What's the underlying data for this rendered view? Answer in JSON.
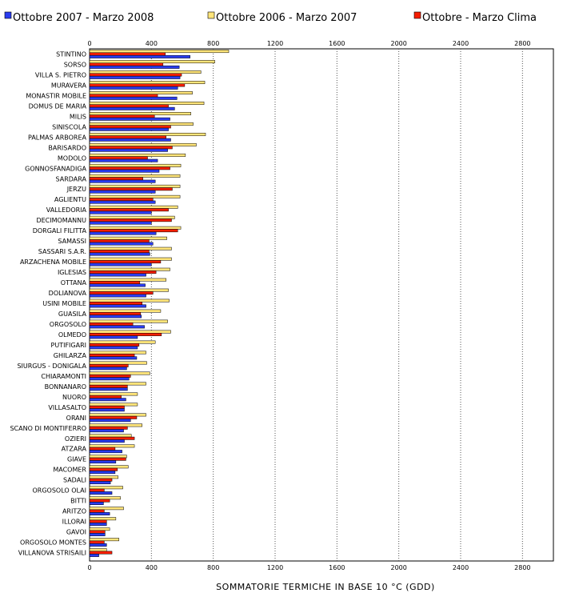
{
  "chart_data": {
    "type": "bar",
    "orientation": "horizontal",
    "xlabel": "SOMMATORIE TERMICHE IN BASE 10 °C (GDD)",
    "xlim": [
      0,
      3000
    ],
    "xticks": [
      0,
      400,
      800,
      1200,
      1600,
      2000,
      2400,
      2800
    ],
    "grid": "vertical dotted",
    "legend_position": "top",
    "categories": [
      "STINTINO",
      "SORSO",
      "VILLA S. PIETRO",
      "MURAVERA",
      "MONASTIR MOBILE",
      "DOMUS DE MARIA",
      "MILIS",
      "SINISCOLA",
      "PALMAS ARBOREA",
      "BARISARDO",
      "MODOLO",
      "GONNOSFANADIGA",
      "SARDARA",
      "JERZU",
      "AGLIENTU",
      "VALLEDORIA",
      "DECIMOMANNU",
      "DORGALI FILITTA",
      "SAMASSI",
      "SASSARI S.A.R.",
      "ARZACHENA MOBILE",
      "IGLESIAS",
      "OTTANA",
      "DOLIANOVA",
      "USINI MOBILE",
      "GUASILA",
      "ORGOSOLO",
      "OLMEDO",
      "PUTIFIGARI",
      "GHILARZA",
      "SIURGUS - DONIGALA",
      "CHIARAMONTI",
      "BONNANARO",
      "NUORO",
      "VILLASALTO",
      "ORANI",
      "SCANO DI MONTIFERRO",
      "OZIERI",
      "ATZARA",
      "GIAVE",
      "MACOMER",
      "SADALI",
      "ORGOSOLO OLAI",
      "BITTI",
      "ARITZO",
      "ILLORAI",
      "GAVOI",
      "ORGOSOLO MONTES",
      "VILLANOVA STRISAILI"
    ],
    "series": [
      {
        "name": "Ottobre 2007 - Marzo 2008",
        "color": "#2a3cf0",
        "values": [
          650,
          580,
          585,
          570,
          565,
          550,
          520,
          510,
          525,
          505,
          440,
          450,
          425,
          425,
          425,
          400,
          400,
          430,
          410,
          390,
          400,
          365,
          360,
          365,
          365,
          335,
          355,
          310,
          310,
          305,
          240,
          255,
          245,
          235,
          225,
          265,
          220,
          225,
          210,
          170,
          165,
          135,
          145,
          90,
          130,
          110,
          100,
          110,
          60
        ]
      },
      {
        "name": "Ottobre 2006 - Marzo 2007",
        "color": "#ffe57a",
        "values": [
          900,
          810,
          720,
          745,
          665,
          740,
          655,
          670,
          750,
          690,
          620,
          590,
          585,
          585,
          585,
          570,
          550,
          590,
          500,
          530,
          530,
          520,
          495,
          510,
          515,
          460,
          505,
          525,
          425,
          365,
          370,
          390,
          365,
          310,
          310,
          365,
          340,
          270,
          290,
          240,
          250,
          185,
          215,
          200,
          220,
          170,
          130,
          190,
          110
        ]
      },
      {
        "name": "Ottobre - Marzo Clima",
        "color": "#f51d00",
        "values": [
          490,
          475,
          595,
          615,
          440,
          510,
          420,
          525,
          495,
          535,
          375,
          520,
          345,
          535,
          410,
          510,
          530,
          570,
          385,
          385,
          460,
          430,
          325,
          410,
          340,
          330,
          280,
          465,
          320,
          290,
          250,
          265,
          245,
          205,
          225,
          305,
          245,
          290,
          165,
          235,
          180,
          145,
          95,
          130,
          95,
          110,
          100,
          95,
          145
        ]
      }
    ]
  }
}
